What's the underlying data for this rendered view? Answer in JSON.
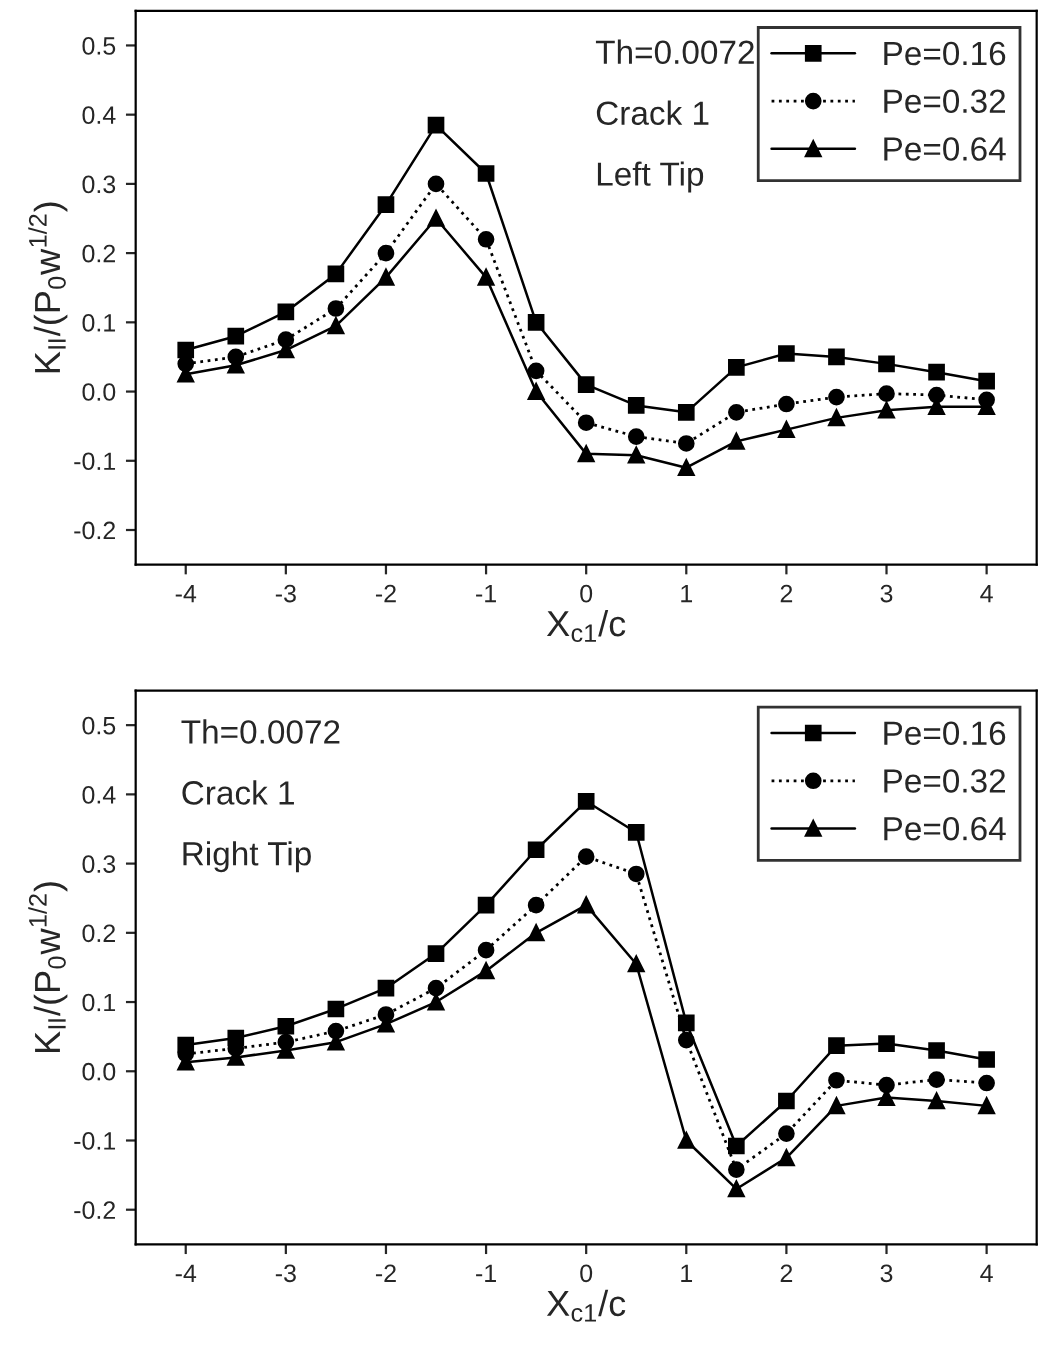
{
  "chart_data": [
    {
      "type": "line",
      "xlabel": "X$_{c1}$/c",
      "ylabel": "K$_{II}$/(P$_{0}$w$^{1/2}$)",
      "annotations": [
        "Th=0.0072",
        "Crack 1",
        "Left Tip"
      ],
      "x": [
        -4,
        -3.5,
        -3,
        -2.5,
        -2,
        -1.5,
        -1,
        -0.5,
        0,
        0.5,
        1,
        1.5,
        2,
        2.5,
        3,
        3.5,
        4
      ],
      "xlim": [
        -4.5,
        4.5
      ],
      "xticks": [
        -4,
        -3,
        -2,
        -1,
        0,
        1,
        2,
        3,
        4
      ],
      "ylim": [
        -0.25,
        0.55
      ],
      "yticks": [
        -0.2,
        -0.1,
        {
          "value": 0,
          "label": "0.0"
        },
        0.1,
        0.2,
        0.3,
        0.4,
        0.5
      ],
      "legend": "top right",
      "grid": false,
      "series": [
        {
          "name": "Pe=0.16",
          "color": "#000000",
          "marker": "square",
          "line_style": "solid",
          "values": [
            0.06,
            0.08,
            0.115,
            0.17,
            0.27,
            0.385,
            0.315,
            0.1,
            0.01,
            -0.02,
            -0.03,
            0.035,
            0.055,
            0.05,
            0.04,
            0.028,
            0.015
          ]
        },
        {
          "name": "Pe=0.32",
          "color": "#000000",
          "marker": "circle",
          "line_style": "dotted",
          "values": [
            0.04,
            0.05,
            0.075,
            0.12,
            0.2,
            0.3,
            0.22,
            0.03,
            -0.045,
            -0.065,
            -0.075,
            -0.03,
            -0.018,
            -0.008,
            -0.003,
            -0.005,
            -0.012
          ]
        },
        {
          "name": "Pe=0.64",
          "color": "#000000",
          "marker": "triangle",
          "line_style": "solid",
          "values": [
            0.025,
            0.038,
            0.06,
            0.095,
            0.165,
            0.25,
            0.165,
            0.0,
            -0.09,
            -0.092,
            -0.11,
            -0.072,
            -0.055,
            -0.038,
            -0.027,
            -0.022,
            -0.022
          ]
        }
      ]
    },
    {
      "type": "line",
      "xlabel": "X$_{c1}$/c",
      "ylabel": "K$_{II}$/(P$_{0}$w$^{1/2}$)",
      "annotations": [
        "Th=0.0072",
        "Crack 1",
        "Right Tip"
      ],
      "x": [
        -4,
        -3.5,
        -3,
        -2.5,
        -2,
        -1.5,
        -1,
        -0.5,
        0,
        0.5,
        1,
        1.5,
        2,
        2.5,
        3,
        3.5,
        4
      ],
      "xlim": [
        -4.5,
        4.5
      ],
      "xticks": [
        -4,
        -3,
        -2,
        -1,
        0,
        1,
        2,
        3,
        4
      ],
      "ylim": [
        -0.25,
        0.55
      ],
      "yticks": [
        -0.2,
        -0.1,
        {
          "value": 0,
          "label": "0.0"
        },
        0.1,
        0.2,
        0.3,
        0.4,
        0.5
      ],
      "legend": "top right",
      "grid": false,
      "series": [
        {
          "name": "Pe=0.16",
          "color": "#000000",
          "marker": "square",
          "line_style": "solid",
          "values": [
            0.038,
            0.048,
            0.065,
            0.09,
            0.12,
            0.17,
            0.24,
            0.32,
            0.39,
            0.345,
            0.07,
            -0.108,
            -0.043,
            0.037,
            0.04,
            0.03,
            0.017
          ]
        },
        {
          "name": "Pe=0.32",
          "color": "#000000",
          "marker": "circle",
          "line_style": "dotted",
          "values": [
            0.025,
            0.033,
            0.042,
            0.058,
            0.082,
            0.12,
            0.175,
            0.24,
            0.31,
            0.285,
            0.045,
            -0.142,
            -0.09,
            -0.013,
            -0.02,
            -0.012,
            -0.017
          ]
        },
        {
          "name": "Pe=0.64",
          "color": "#000000",
          "marker": "triangle",
          "line_style": "solid",
          "values": [
            0.013,
            0.02,
            0.03,
            0.042,
            0.068,
            0.1,
            0.145,
            0.2,
            0.24,
            0.155,
            -0.1,
            -0.17,
            -0.125,
            -0.05,
            -0.038,
            -0.043,
            -0.05
          ]
        }
      ]
    }
  ]
}
